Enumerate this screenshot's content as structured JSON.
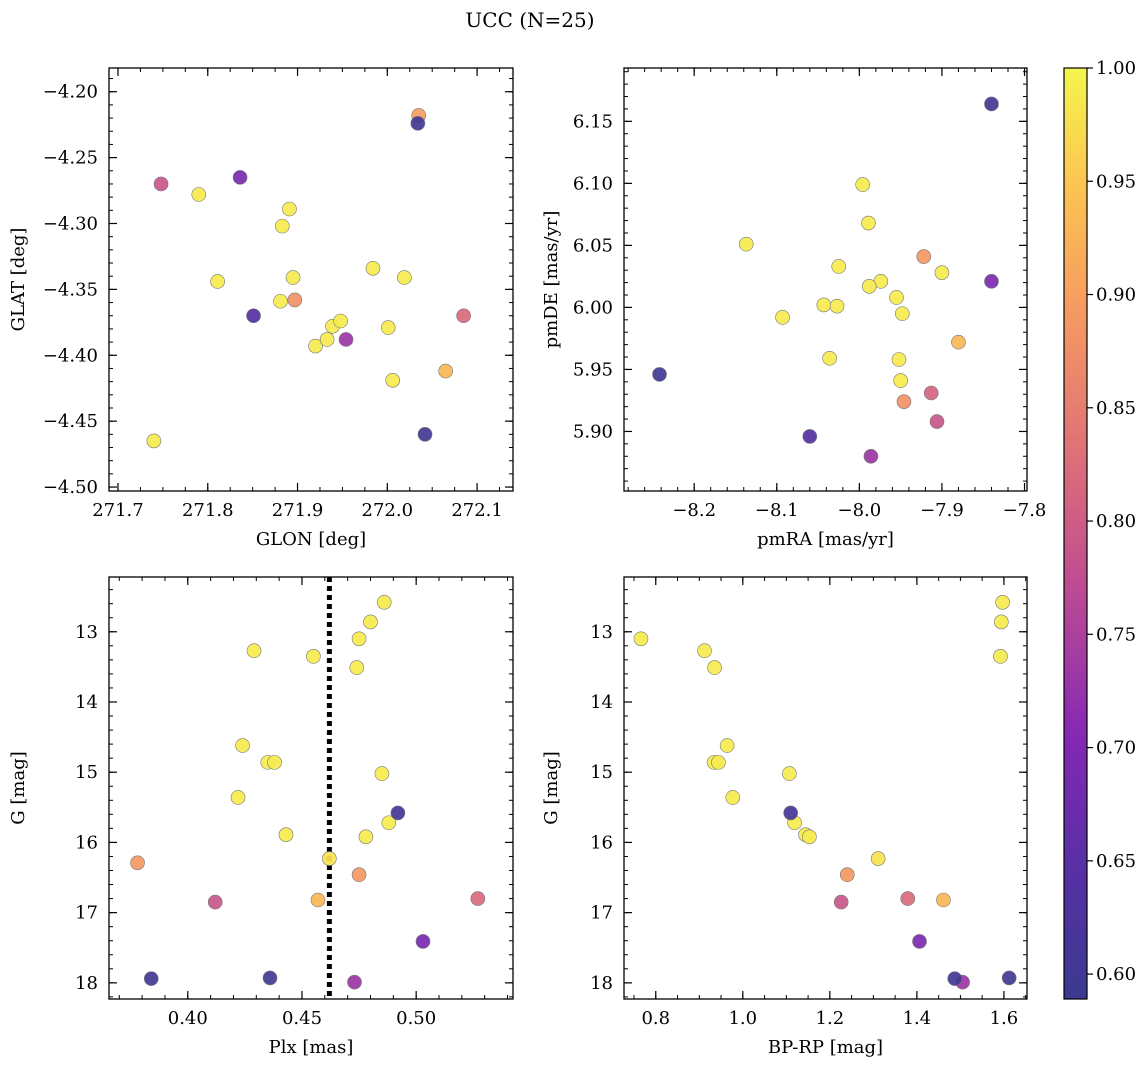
{
  "figure": {
    "title": "UCC (N=25)",
    "colormap": "plasma",
    "colorbar": {
      "range": [
        0.589,
        1.0
      ],
      "ticks": [
        "0.60",
        "0.65",
        "0.70",
        "0.75",
        "0.80",
        "0.85",
        "0.90",
        "0.95",
        "1.00"
      ]
    }
  },
  "chart_data": [
    {
      "id": "glon-glat",
      "type": "scatter",
      "xlabel": "GLON [deg]",
      "ylabel": "GLAT [deg]",
      "xlim": [
        271.69,
        272.14
      ],
      "ylim": [
        -4.503,
        -4.182
      ],
      "y_inverted": false,
      "xticks": [
        271.7,
        271.8,
        271.9,
        272.0,
        272.1
      ],
      "xtick_labels": [
        "271.7",
        "271.8",
        "271.9",
        "272.0",
        "272.1"
      ],
      "yticks": [
        -4.5,
        -4.45,
        -4.4,
        -4.35,
        -4.3,
        -4.25,
        -4.2
      ],
      "ytick_labels": [
        "−4.50",
        "−4.45",
        "−4.40",
        "−4.35",
        "−4.30",
        "−4.25",
        "−4.20"
      ],
      "x_minor": 0.025,
      "y_minor": 0.01,
      "points": [
        {
          "x": 271.748,
          "y": -4.27,
          "c": 0.79
        },
        {
          "x": 271.79,
          "y": -4.278,
          "c": 0.99
        },
        {
          "x": 271.836,
          "y": -4.265,
          "c": 0.69
        },
        {
          "x": 271.883,
          "y": -4.302,
          "c": 0.99
        },
        {
          "x": 271.891,
          "y": -4.289,
          "c": 0.99
        },
        {
          "x": 271.811,
          "y": -4.344,
          "c": 0.99
        },
        {
          "x": 271.895,
          "y": -4.341,
          "c": 0.99
        },
        {
          "x": 271.881,
          "y": -4.359,
          "c": 0.99
        },
        {
          "x": 271.897,
          "y": -4.358,
          "c": 0.88
        },
        {
          "x": 271.851,
          "y": -4.37,
          "c": 0.64
        },
        {
          "x": 271.92,
          "y": -4.393,
          "c": 0.99
        },
        {
          "x": 271.933,
          "y": -4.388,
          "c": 0.99
        },
        {
          "x": 271.939,
          "y": -4.378,
          "c": 0.99
        },
        {
          "x": 271.948,
          "y": -4.374,
          "c": 0.99
        },
        {
          "x": 271.954,
          "y": -4.388,
          "c": 0.73
        },
        {
          "x": 271.984,
          "y": -4.334,
          "c": 0.99
        },
        {
          "x": 272.001,
          "y": -4.379,
          "c": 0.99
        },
        {
          "x": 272.019,
          "y": -4.341,
          "c": 0.99
        },
        {
          "x": 272.006,
          "y": -4.419,
          "c": 0.99
        },
        {
          "x": 272.035,
          "y": -4.218,
          "c": 0.9
        },
        {
          "x": 272.034,
          "y": -4.224,
          "c": 0.6
        },
        {
          "x": 272.042,
          "y": -4.46,
          "c": 0.6
        },
        {
          "x": 272.065,
          "y": -4.412,
          "c": 0.93
        },
        {
          "x": 272.085,
          "y": -4.37,
          "c": 0.82
        },
        {
          "x": 271.74,
          "y": -4.465,
          "c": 0.99
        }
      ]
    },
    {
      "id": "pmra-pmde",
      "type": "scatter",
      "xlabel": "pmRA [mas/yr]",
      "ylabel": "pmDE [mas/yr]",
      "xlim": [
        -8.285,
        -7.797
      ],
      "ylim": [
        5.852,
        6.193
      ],
      "y_inverted": false,
      "xticks": [
        -8.2,
        -8.1,
        -8.0,
        -7.9,
        -7.8
      ],
      "xtick_labels": [
        "−8.2",
        "−8.1",
        "−8.0",
        "−7.9",
        "−7.8"
      ],
      "yticks": [
        5.9,
        5.95,
        6.0,
        6.05,
        6.1,
        6.15
      ],
      "ytick_labels": [
        "5.90",
        "5.95",
        "6.00",
        "6.05",
        "6.10",
        "6.15"
      ],
      "x_minor": 0.02,
      "y_minor": 0.01,
      "points": [
        {
          "x": -7.84,
          "y": 6.164,
          "c": 0.6
        },
        {
          "x": -7.996,
          "y": 6.099,
          "c": 0.99
        },
        {
          "x": -7.989,
          "y": 6.068,
          "c": 0.99
        },
        {
          "x": -8.137,
          "y": 6.051,
          "c": 0.99
        },
        {
          "x": -7.922,
          "y": 6.041,
          "c": 0.89
        },
        {
          "x": -8.025,
          "y": 6.033,
          "c": 0.99
        },
        {
          "x": -7.9,
          "y": 6.028,
          "c": 0.99
        },
        {
          "x": -7.974,
          "y": 6.021,
          "c": 0.99
        },
        {
          "x": -7.988,
          "y": 6.017,
          "c": 0.99
        },
        {
          "x": -7.84,
          "y": 6.021,
          "c": 0.69
        },
        {
          "x": -7.955,
          "y": 6.008,
          "c": 0.99
        },
        {
          "x": -8.043,
          "y": 6.002,
          "c": 0.99
        },
        {
          "x": -8.027,
          "y": 6.001,
          "c": 0.99
        },
        {
          "x": -7.948,
          "y": 5.995,
          "c": 0.99
        },
        {
          "x": -8.093,
          "y": 5.992,
          "c": 0.99
        },
        {
          "x": -7.88,
          "y": 5.972,
          "c": 0.93
        },
        {
          "x": -8.036,
          "y": 5.959,
          "c": 0.99
        },
        {
          "x": -7.952,
          "y": 5.958,
          "c": 0.99
        },
        {
          "x": -8.242,
          "y": 5.946,
          "c": 0.6
        },
        {
          "x": -7.95,
          "y": 5.941,
          "c": 0.99
        },
        {
          "x": -7.913,
          "y": 5.931,
          "c": 0.81
        },
        {
          "x": -7.946,
          "y": 5.924,
          "c": 0.88
        },
        {
          "x": -7.906,
          "y": 5.908,
          "c": 0.79
        },
        {
          "x": -8.06,
          "y": 5.896,
          "c": 0.64
        },
        {
          "x": -7.986,
          "y": 5.88,
          "c": 0.73
        }
      ]
    },
    {
      "id": "plx-g",
      "type": "scatter",
      "xlabel": "Plx [mas]",
      "ylabel": "G [mag]",
      "xlim": [
        0.3655,
        0.5424
      ],
      "ylim": [
        12.22,
        18.23
      ],
      "y_inverted": true,
      "vline": {
        "x": 0.462,
        "style": "dotted"
      },
      "xticks": [
        0.4,
        0.45,
        0.5
      ],
      "xtick_labels": [
        "0.40",
        "0.45",
        "0.50"
      ],
      "yticks": [
        13,
        14,
        15,
        16,
        17,
        18
      ],
      "ytick_labels": [
        "13",
        "14",
        "15",
        "16",
        "17",
        "18"
      ],
      "x_minor": 0.01,
      "y_minor": 0.2,
      "points": [
        {
          "x": 0.486,
          "y": 12.58,
          "c": 0.99
        },
        {
          "x": 0.48,
          "y": 12.86,
          "c": 0.99
        },
        {
          "x": 0.475,
          "y": 13.1,
          "c": 0.99
        },
        {
          "x": 0.429,
          "y": 13.27,
          "c": 0.99
        },
        {
          "x": 0.455,
          "y": 13.35,
          "c": 0.99
        },
        {
          "x": 0.474,
          "y": 13.51,
          "c": 0.99
        },
        {
          "x": 0.424,
          "y": 14.62,
          "c": 0.99
        },
        {
          "x": 0.435,
          "y": 14.86,
          "c": 0.99
        },
        {
          "x": 0.438,
          "y": 14.86,
          "c": 0.99
        },
        {
          "x": 0.485,
          "y": 15.02,
          "c": 0.99
        },
        {
          "x": 0.422,
          "y": 15.36,
          "c": 0.99
        },
        {
          "x": 0.492,
          "y": 15.58,
          "c": 0.61
        },
        {
          "x": 0.488,
          "y": 15.72,
          "c": 0.99
        },
        {
          "x": 0.443,
          "y": 15.89,
          "c": 0.99
        },
        {
          "x": 0.478,
          "y": 15.92,
          "c": 0.99
        },
        {
          "x": 0.462,
          "y": 16.23,
          "c": 0.98
        },
        {
          "x": 0.378,
          "y": 16.29,
          "c": 0.89
        },
        {
          "x": 0.475,
          "y": 16.46,
          "c": 0.89
        },
        {
          "x": 0.527,
          "y": 16.8,
          "c": 0.82
        },
        {
          "x": 0.457,
          "y": 16.82,
          "c": 0.93
        },
        {
          "x": 0.412,
          "y": 16.85,
          "c": 0.79
        },
        {
          "x": 0.503,
          "y": 17.41,
          "c": 0.69
        },
        {
          "x": 0.384,
          "y": 17.94,
          "c": 0.6
        },
        {
          "x": 0.436,
          "y": 17.93,
          "c": 0.6
        },
        {
          "x": 0.473,
          "y": 17.99,
          "c": 0.73
        }
      ]
    },
    {
      "id": "bprp-g",
      "type": "scatter",
      "xlabel": "BP-RP [mag]",
      "ylabel": "G [mag]",
      "xlim": [
        0.727,
        1.653
      ],
      "ylim": [
        12.22,
        18.23
      ],
      "y_inverted": true,
      "xticks": [
        0.8,
        1.0,
        1.2,
        1.4,
        1.6
      ],
      "xtick_labels": [
        "0.8",
        "1.0",
        "1.2",
        "1.4",
        "1.6"
      ],
      "yticks": [
        13,
        14,
        15,
        16,
        17,
        18
      ],
      "ytick_labels": [
        "13",
        "14",
        "15",
        "16",
        "17",
        "18"
      ],
      "x_minor": 0.05,
      "y_minor": 0.2,
      "points": [
        {
          "x": 1.597,
          "y": 12.58,
          "c": 0.99
        },
        {
          "x": 1.594,
          "y": 12.86,
          "c": 0.99
        },
        {
          "x": 0.766,
          "y": 13.1,
          "c": 0.99
        },
        {
          "x": 0.912,
          "y": 13.27,
          "c": 0.99
        },
        {
          "x": 1.592,
          "y": 13.35,
          "c": 0.99
        },
        {
          "x": 0.935,
          "y": 13.51,
          "c": 0.99
        },
        {
          "x": 0.964,
          "y": 14.62,
          "c": 0.99
        },
        {
          "x": 0.934,
          "y": 14.86,
          "c": 0.99
        },
        {
          "x": 0.944,
          "y": 14.86,
          "c": 0.99
        },
        {
          "x": 1.107,
          "y": 15.02,
          "c": 0.99
        },
        {
          "x": 0.977,
          "y": 15.36,
          "c": 0.99
        },
        {
          "x": 1.11,
          "y": 15.58,
          "c": 0.61
        },
        {
          "x": 1.119,
          "y": 15.72,
          "c": 0.99
        },
        {
          "x": 1.144,
          "y": 15.89,
          "c": 0.99
        },
        {
          "x": 1.153,
          "y": 15.92,
          "c": 0.99
        },
        {
          "x": 1.311,
          "y": 16.23,
          "c": 0.98
        },
        {
          "x": 1.24,
          "y": 16.46,
          "c": 0.89
        },
        {
          "x": 1.379,
          "y": 16.8,
          "c": 0.82
        },
        {
          "x": 1.461,
          "y": 16.82,
          "c": 0.93
        },
        {
          "x": 1.226,
          "y": 16.85,
          "c": 0.79
        },
        {
          "x": 1.406,
          "y": 17.41,
          "c": 0.69
        },
        {
          "x": 1.487,
          "y": 17.94,
          "c": 0.6
        },
        {
          "x": 1.612,
          "y": 17.93,
          "c": 0.6
        },
        {
          "x": 1.505,
          "y": 17.99,
          "c": 0.73
        }
      ]
    }
  ]
}
